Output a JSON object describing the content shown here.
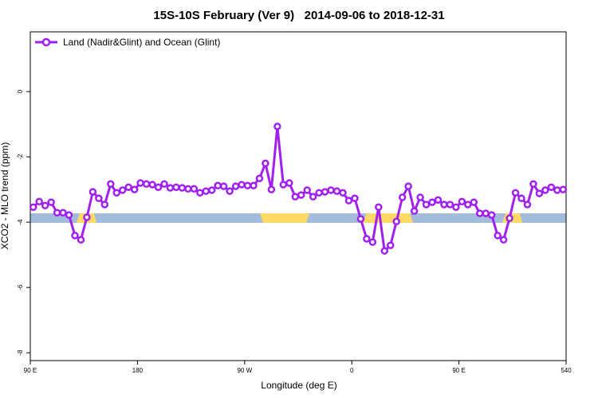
{
  "chart_data": {
    "type": "line",
    "title": "15S-10S February (Ver 9)   2014-09-06 to 2018-12-31",
    "xlabel": "Longitude (deg E)",
    "ylabel": "XCO2 - MLO trend (ppm)",
    "x": [
      92.5,
      97.5,
      102.5,
      107.5,
      112.5,
      117.5,
      122.5,
      127.5,
      132.5,
      137.5,
      142.5,
      147.5,
      152.5,
      157.5,
      162.5,
      167.5,
      172.5,
      177.5,
      182.5,
      187.5,
      192.5,
      197.5,
      202.5,
      207.5,
      212.5,
      217.5,
      222.5,
      227.5,
      232.5,
      237.5,
      242.5,
      247.5,
      252.5,
      257.5,
      262.5,
      267.5,
      272.5,
      277.5,
      282.5,
      287.5,
      292.5,
      297.5,
      302.5,
      307.5,
      312.5,
      317.5,
      322.5,
      327.5,
      332.5,
      337.5,
      342.5,
      347.5,
      352.5,
      357.5,
      362.5,
      367.5,
      372.5,
      377.5,
      382.5,
      387.5,
      392.5,
      397.5,
      402.5,
      407.5,
      412.5,
      417.5,
      422.5,
      427.5,
      432.5,
      437.5,
      442.5,
      447.5,
      452.5,
      457.5,
      462.5,
      467.5,
      472.5,
      477.5,
      482.5,
      487.5,
      492.5,
      497.5,
      502.5,
      507.5,
      512.5,
      517.5,
      522.5,
      527.5,
      532.5,
      537.5
    ],
    "series": [
      {
        "name": "Land (Nadir&Glint) and Ocean (Glint)",
        "color": "#a020f0",
        "values": [
          -3.54,
          -3.37,
          -3.49,
          -3.39,
          -3.71,
          -3.71,
          -3.78,
          -4.41,
          -4.54,
          -3.85,
          -3.07,
          -3.27,
          -3.46,
          -2.83,
          -3.1,
          -3.02,
          -2.93,
          -3.0,
          -2.8,
          -2.83,
          -2.85,
          -2.93,
          -2.83,
          -2.95,
          -2.93,
          -2.95,
          -2.98,
          -2.98,
          -3.1,
          -3.05,
          -3.02,
          -2.88,
          -2.9,
          -3.05,
          -2.9,
          -2.85,
          -2.88,
          -2.88,
          -2.66,
          -2.2,
          -3.0,
          -1.07,
          -2.85,
          -2.8,
          -3.22,
          -3.17,
          -3.02,
          -3.22,
          -3.1,
          -3.07,
          -3.02,
          -3.05,
          -3.1,
          -3.34,
          -3.27,
          -3.9,
          -4.51,
          -4.61,
          -3.54,
          -4.88,
          -4.71,
          -3.98,
          -3.24,
          -2.9,
          -3.66,
          -3.24,
          -3.46,
          -3.39,
          -3.32,
          -3.46,
          -3.46,
          -3.54,
          -3.37,
          -3.46,
          -3.39,
          -3.73,
          -3.73,
          -3.78,
          -4.41,
          -4.54,
          -3.88,
          -3.1,
          -3.27,
          -3.46,
          -2.83,
          -3.12,
          -3.02,
          -2.93,
          -3.02,
          -3.0
        ]
      }
    ],
    "xlim": [
      90,
      540
    ],
    "xticks": [
      {
        "value": 90,
        "label": "90 E"
      },
      180,
      {
        "value": 270,
        "label": "90 W"
      },
      {
        "value": 360,
        "label": "0"
      },
      {
        "value": 450,
        "label": "90 E"
      },
      540
    ],
    "ylim": [
      -8.24,
      1.83
    ],
    "yticks": [
      0,
      -2,
      -4,
      -6,
      -8
    ],
    "legend": "top-left"
  }
}
